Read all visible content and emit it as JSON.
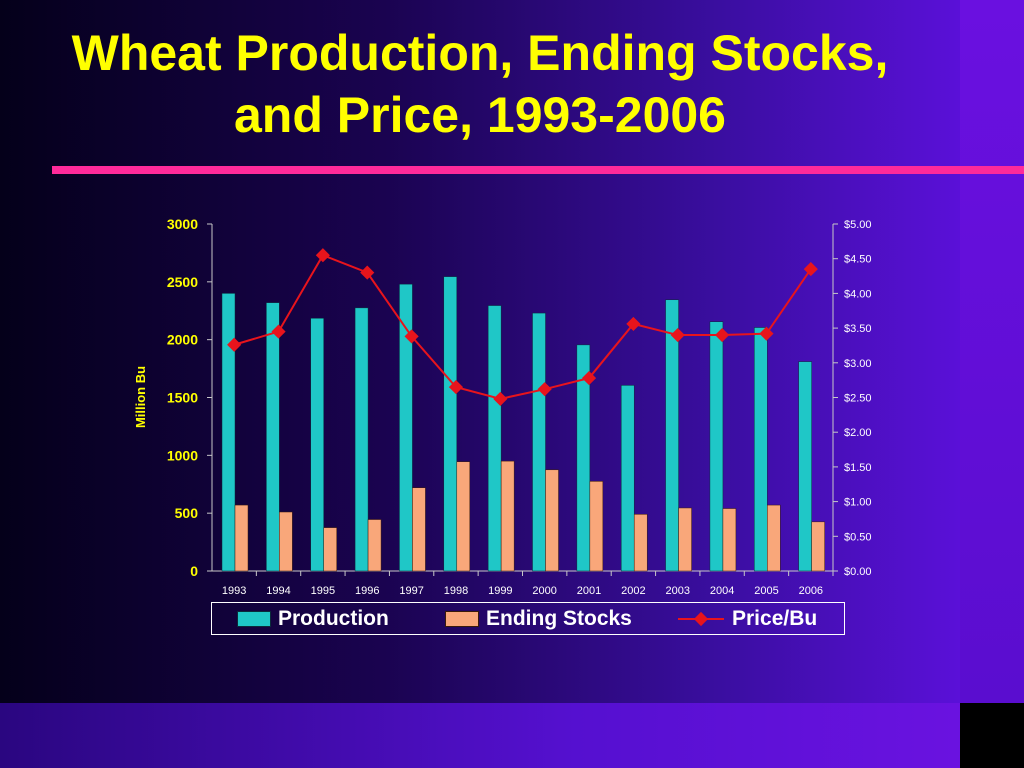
{
  "title": "Wheat Production, Ending Stocks, and Price, 1993-2006",
  "colors": {
    "production": "#1fc7c7",
    "ending_stocks": "#f9a77a",
    "price": "#e8141c",
    "axis_text": "#ffff00",
    "right_axis_text": "#ffffff",
    "accent_rule": "#ff2a9a"
  },
  "chart_data": {
    "type": "bar",
    "title": "Wheat Production, Ending Stocks, and Price, 1993-2006",
    "categories": [
      "1993",
      "1994",
      "1995",
      "1996",
      "1997",
      "1998",
      "1999",
      "2000",
      "2001",
      "2002",
      "2003",
      "2004",
      "2005",
      "2006"
    ],
    "series": [
      {
        "name": "Production",
        "type": "bar",
        "axis": "left",
        "values": [
          2400,
          2320,
          2185,
          2275,
          2480,
          2545,
          2295,
          2230,
          1955,
          1605,
          2345,
          2155,
          2105,
          1810
        ]
      },
      {
        "name": "Ending Stocks",
        "type": "bar",
        "axis": "left",
        "values": [
          570,
          510,
          375,
          445,
          720,
          945,
          950,
          875,
          775,
          490,
          545,
          540,
          570,
          425
        ]
      },
      {
        "name": "Price/Bu",
        "type": "line",
        "axis": "right",
        "values": [
          3.26,
          3.45,
          4.55,
          4.3,
          3.38,
          2.65,
          2.48,
          2.62,
          2.78,
          3.56,
          3.4,
          3.4,
          3.42,
          4.35
        ]
      }
    ],
    "ylabel": "Million Bu",
    "ylim": [
      0,
      3000
    ],
    "y_ticks": [
      "0",
      "500",
      "1000",
      "1500",
      "2000",
      "2500",
      "3000"
    ],
    "y2lim": [
      0,
      5
    ],
    "y2_ticks": [
      "$0.00",
      "$0.50",
      "$1.00",
      "$1.50",
      "$2.00",
      "$2.50",
      "$3.00",
      "$3.50",
      "$4.00",
      "$4.50",
      "$5.00"
    ],
    "legend_position": "bottom",
    "grid": false
  }
}
